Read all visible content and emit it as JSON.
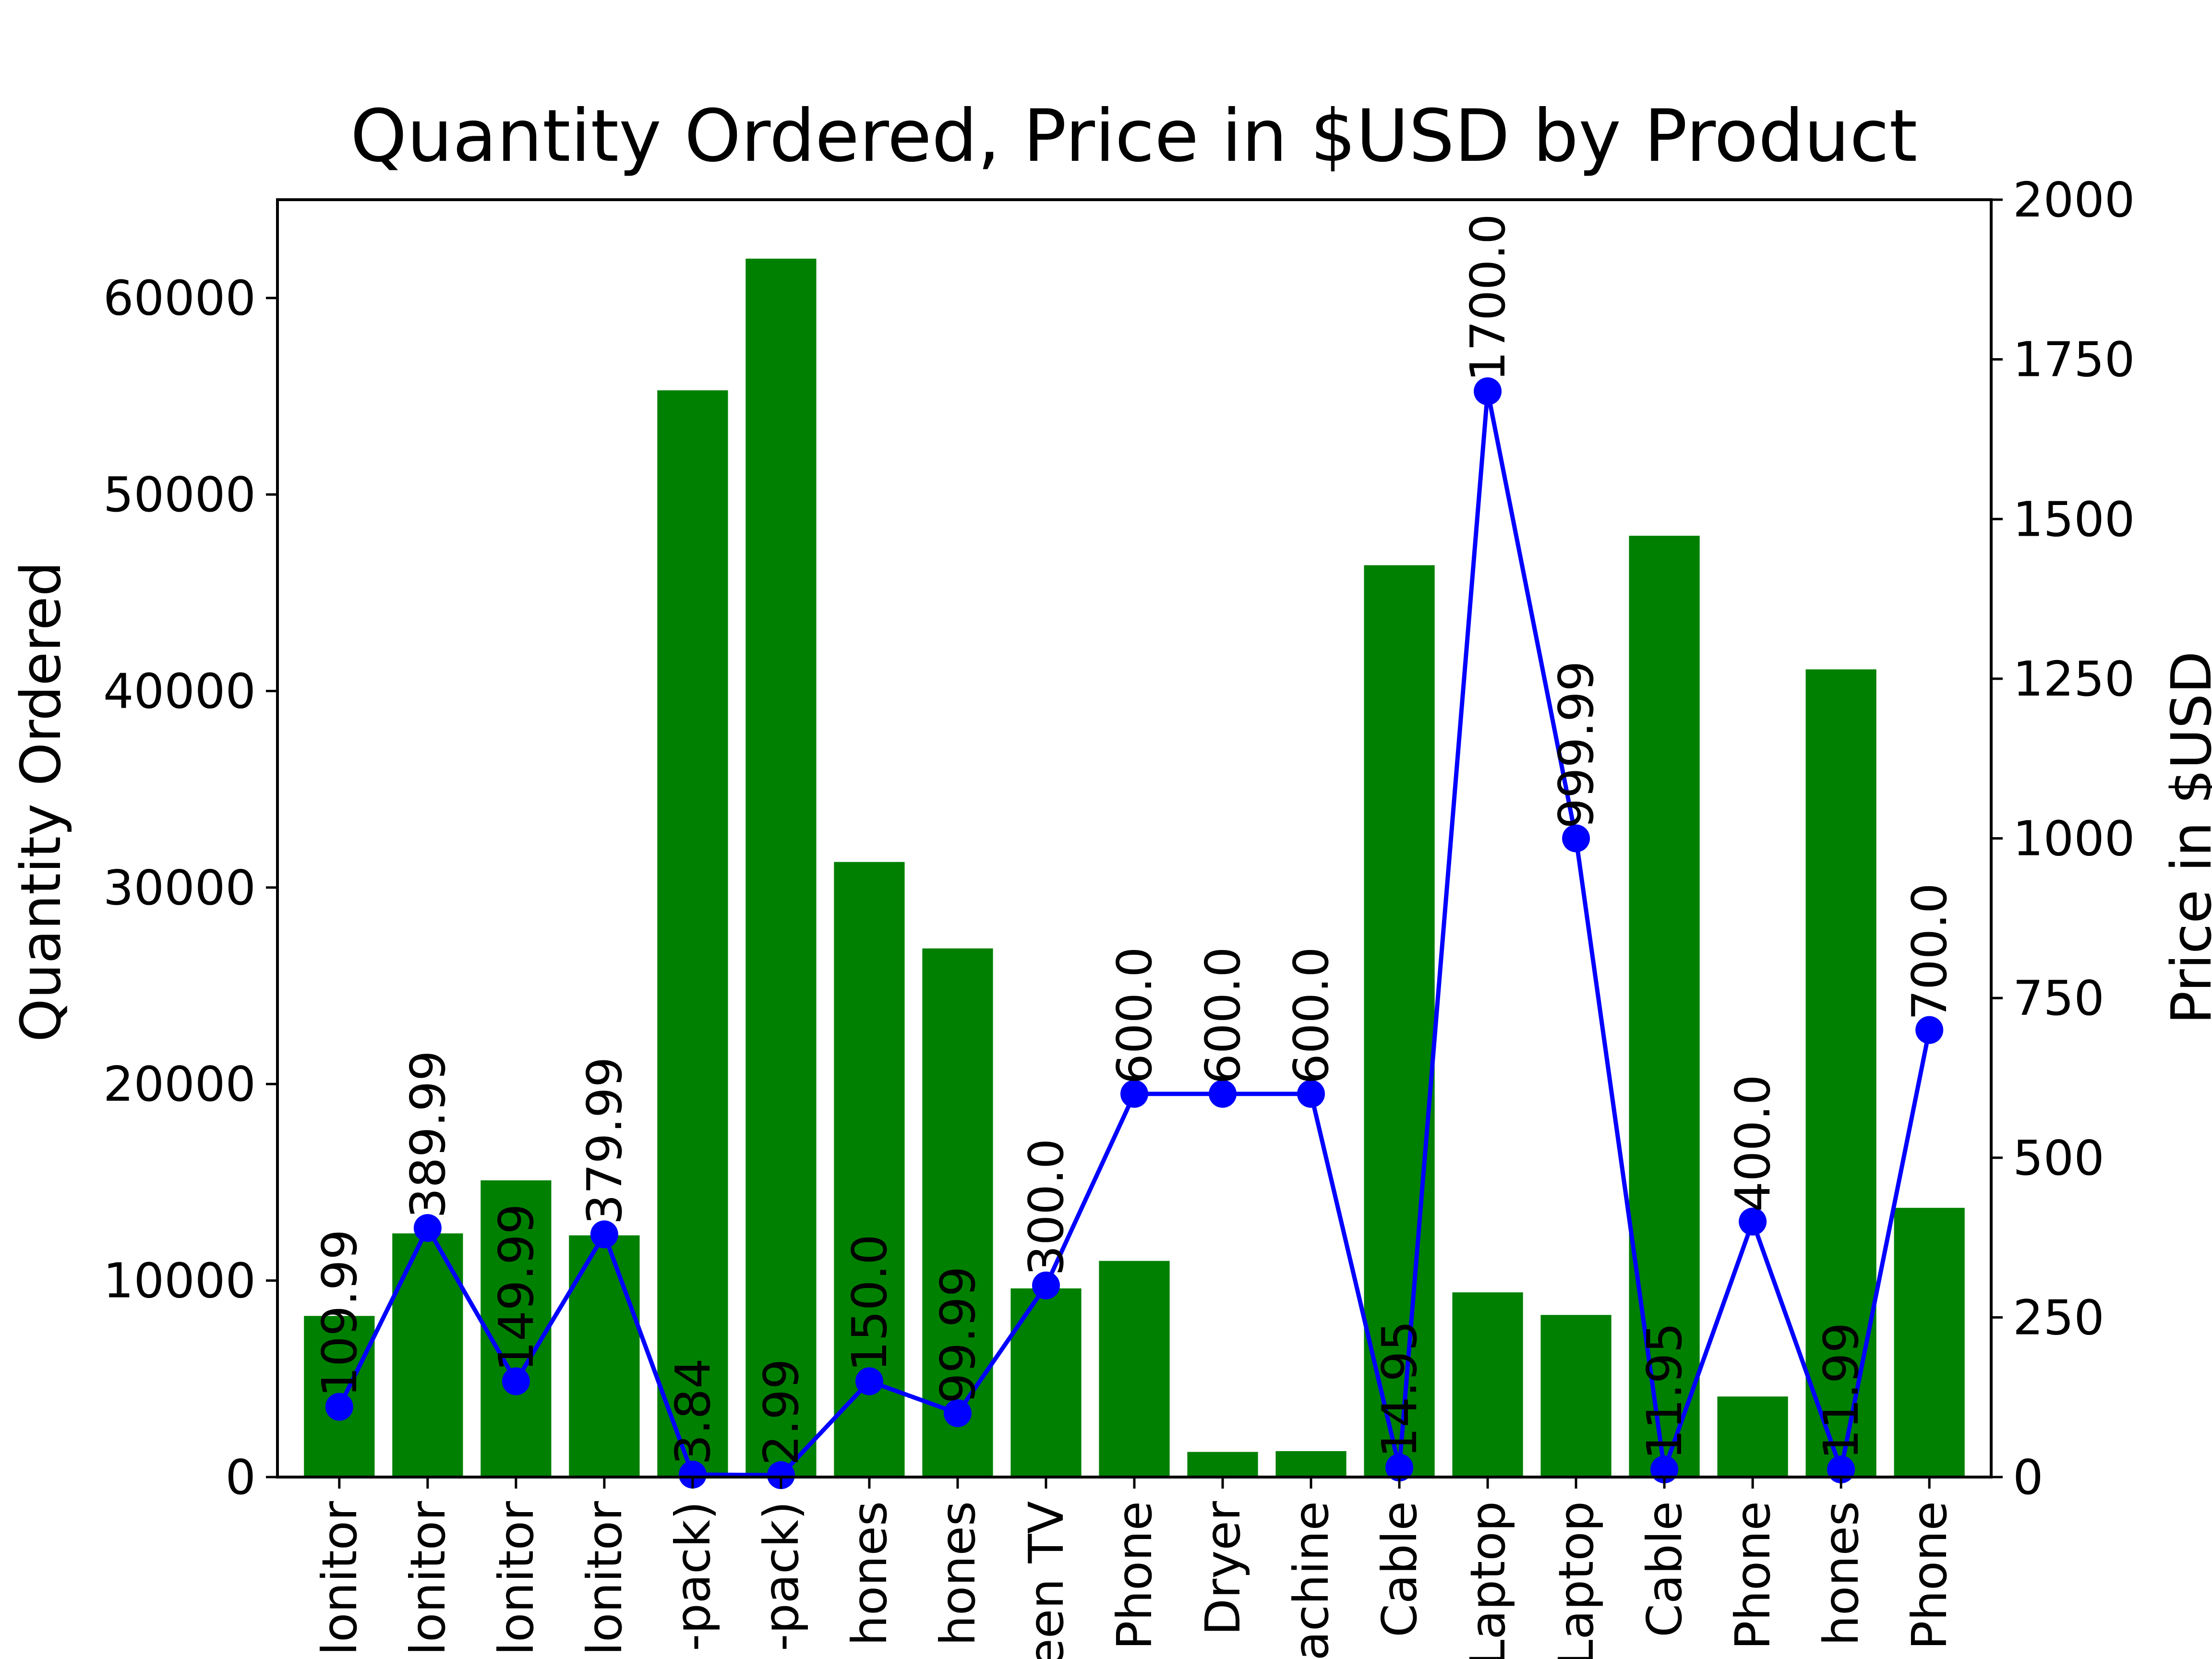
{
  "chart_data": {
    "type": "bar",
    "title": "Quantity Ordered, Price in $USD by Product",
    "ylabel": "Quantity Ordered",
    "y2label": "Price in $USD",
    "categories": [
      "lonitor",
      "lonitor",
      "lonitor",
      "lonitor",
      "-pack)",
      "-pack)",
      "hones",
      "hones",
      "een TV",
      "Phone",
      "Dryer",
      "achine",
      "Cable",
      "Laptop",
      "Laptop",
      "Cable",
      "Phone",
      "hones",
      "Phone"
    ],
    "series": [
      {
        "values": [
          8200,
          12400,
          15100,
          12300,
          55300,
          62000,
          31300,
          26900,
          9600,
          11000,
          1280,
          1320,
          46400,
          9400,
          8250,
          47900,
          4100,
          41100,
          13700
        ],
        "color": "#008000",
        "axis": "left"
      },
      {
        "values": [
          109.99,
          389.99,
          149.99,
          379.99,
          3.84,
          2.99,
          150.0,
          99.99,
          300.0,
          600.0,
          600.0,
          600.0,
          14.95,
          1700.0,
          999.99,
          11.95,
          400.0,
          11.99,
          700.0
        ],
        "labels": [
          "109.99",
          "389.99",
          "149.99",
          "379.99",
          "3.84",
          "2.99",
          "150.0",
          "99.99",
          "300.0",
          "600.0",
          "600.0",
          "600.0",
          "14.95",
          "1700.0",
          "999.99",
          "11.95",
          "400.0",
          "11.99",
          "700.0"
        ],
        "color": "#0000ff",
        "axis": "right",
        "marker": "circle"
      }
    ],
    "ylim": [
      0,
      65000
    ],
    "y2lim": [
      0,
      2000
    ],
    "yticks": [
      0,
      10000,
      20000,
      30000,
      40000,
      50000,
      60000
    ],
    "y2ticks": [
      0,
      250,
      500,
      750,
      1000,
      1250,
      1500,
      1750,
      2000
    ],
    "grid": false,
    "legend": "none"
  }
}
